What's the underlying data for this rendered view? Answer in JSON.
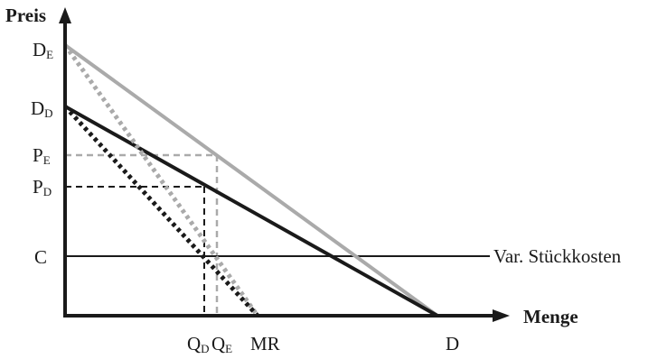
{
  "axes": {
    "y_title": "Preis",
    "x_title": "Menge"
  },
  "y_labels": {
    "de_main": "D",
    "de_sub": "E",
    "dd_main": "D",
    "dd_sub": "D",
    "pe_main": "P",
    "pe_sub": "E",
    "pd_main": "P",
    "pd_sub": "D",
    "c": "C"
  },
  "x_labels": {
    "qd_main": "Q",
    "qd_sub": "D",
    "qe_main": "Q",
    "qe_sub": "E",
    "mr": "MR",
    "d": "D"
  },
  "annotations": {
    "cost_label": "Var. Stückkosten"
  },
  "colors": {
    "black": "#1a1a1a",
    "gray": "#aaaaaa"
  }
}
